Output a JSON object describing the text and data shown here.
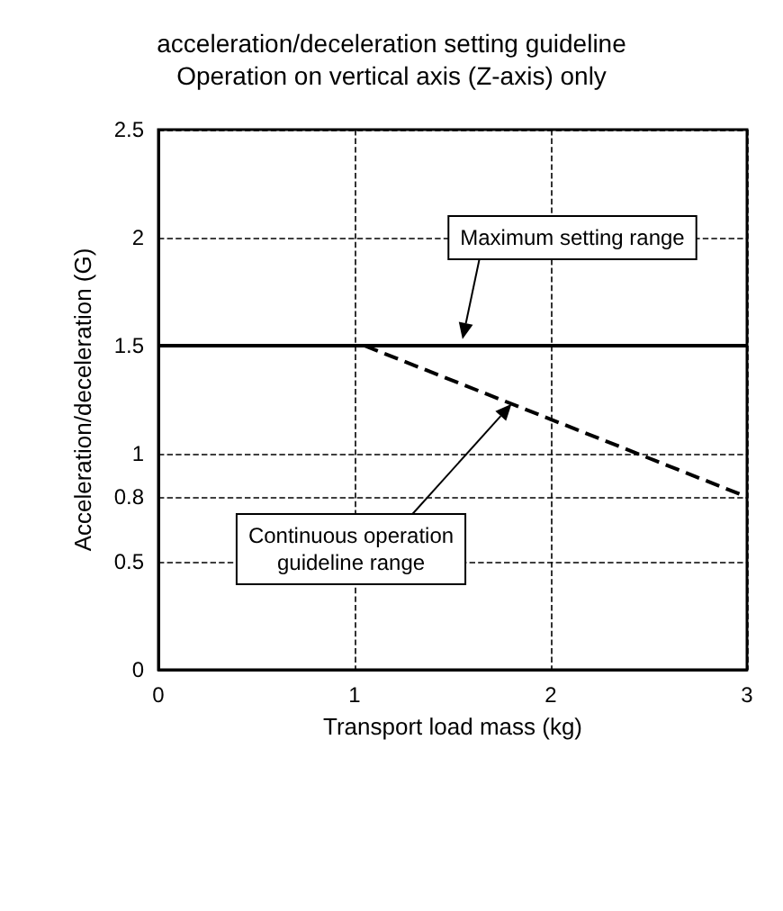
{
  "chart_data": {
    "type": "line",
    "title": "acceleration/deceleration setting guideline",
    "subtitle": "Operation on vertical axis (Z-axis) only",
    "xlabel": "Transport load mass (kg)",
    "ylabel": "Acceleration/deceleration (G)",
    "xlim": [
      0,
      3
    ],
    "xticks": [
      0,
      1,
      2,
      3
    ],
    "ylim": [
      0,
      2.5
    ],
    "yticks": [
      0,
      0.5,
      0.8,
      1,
      1.5,
      2,
      2.5
    ],
    "grid": true,
    "marker": "none",
    "series": [
      {
        "color": "#000000",
        "x": [
          0,
          3
        ],
        "values": [
          1.5,
          1.5
        ],
        "line_style": "solid"
      },
      {
        "color": "#000000",
        "x": [
          1.05,
          3
        ],
        "values": [
          1.5,
          0.8
        ],
        "line_style": "dashed"
      }
    ],
    "annotations": [
      {
        "text": "Maximum setting range",
        "x": 1.55,
        "y": 1.53
      },
      {
        "text": "Continuous operation\nguideline range",
        "x": 1.8,
        "y": 1.23
      }
    ]
  }
}
